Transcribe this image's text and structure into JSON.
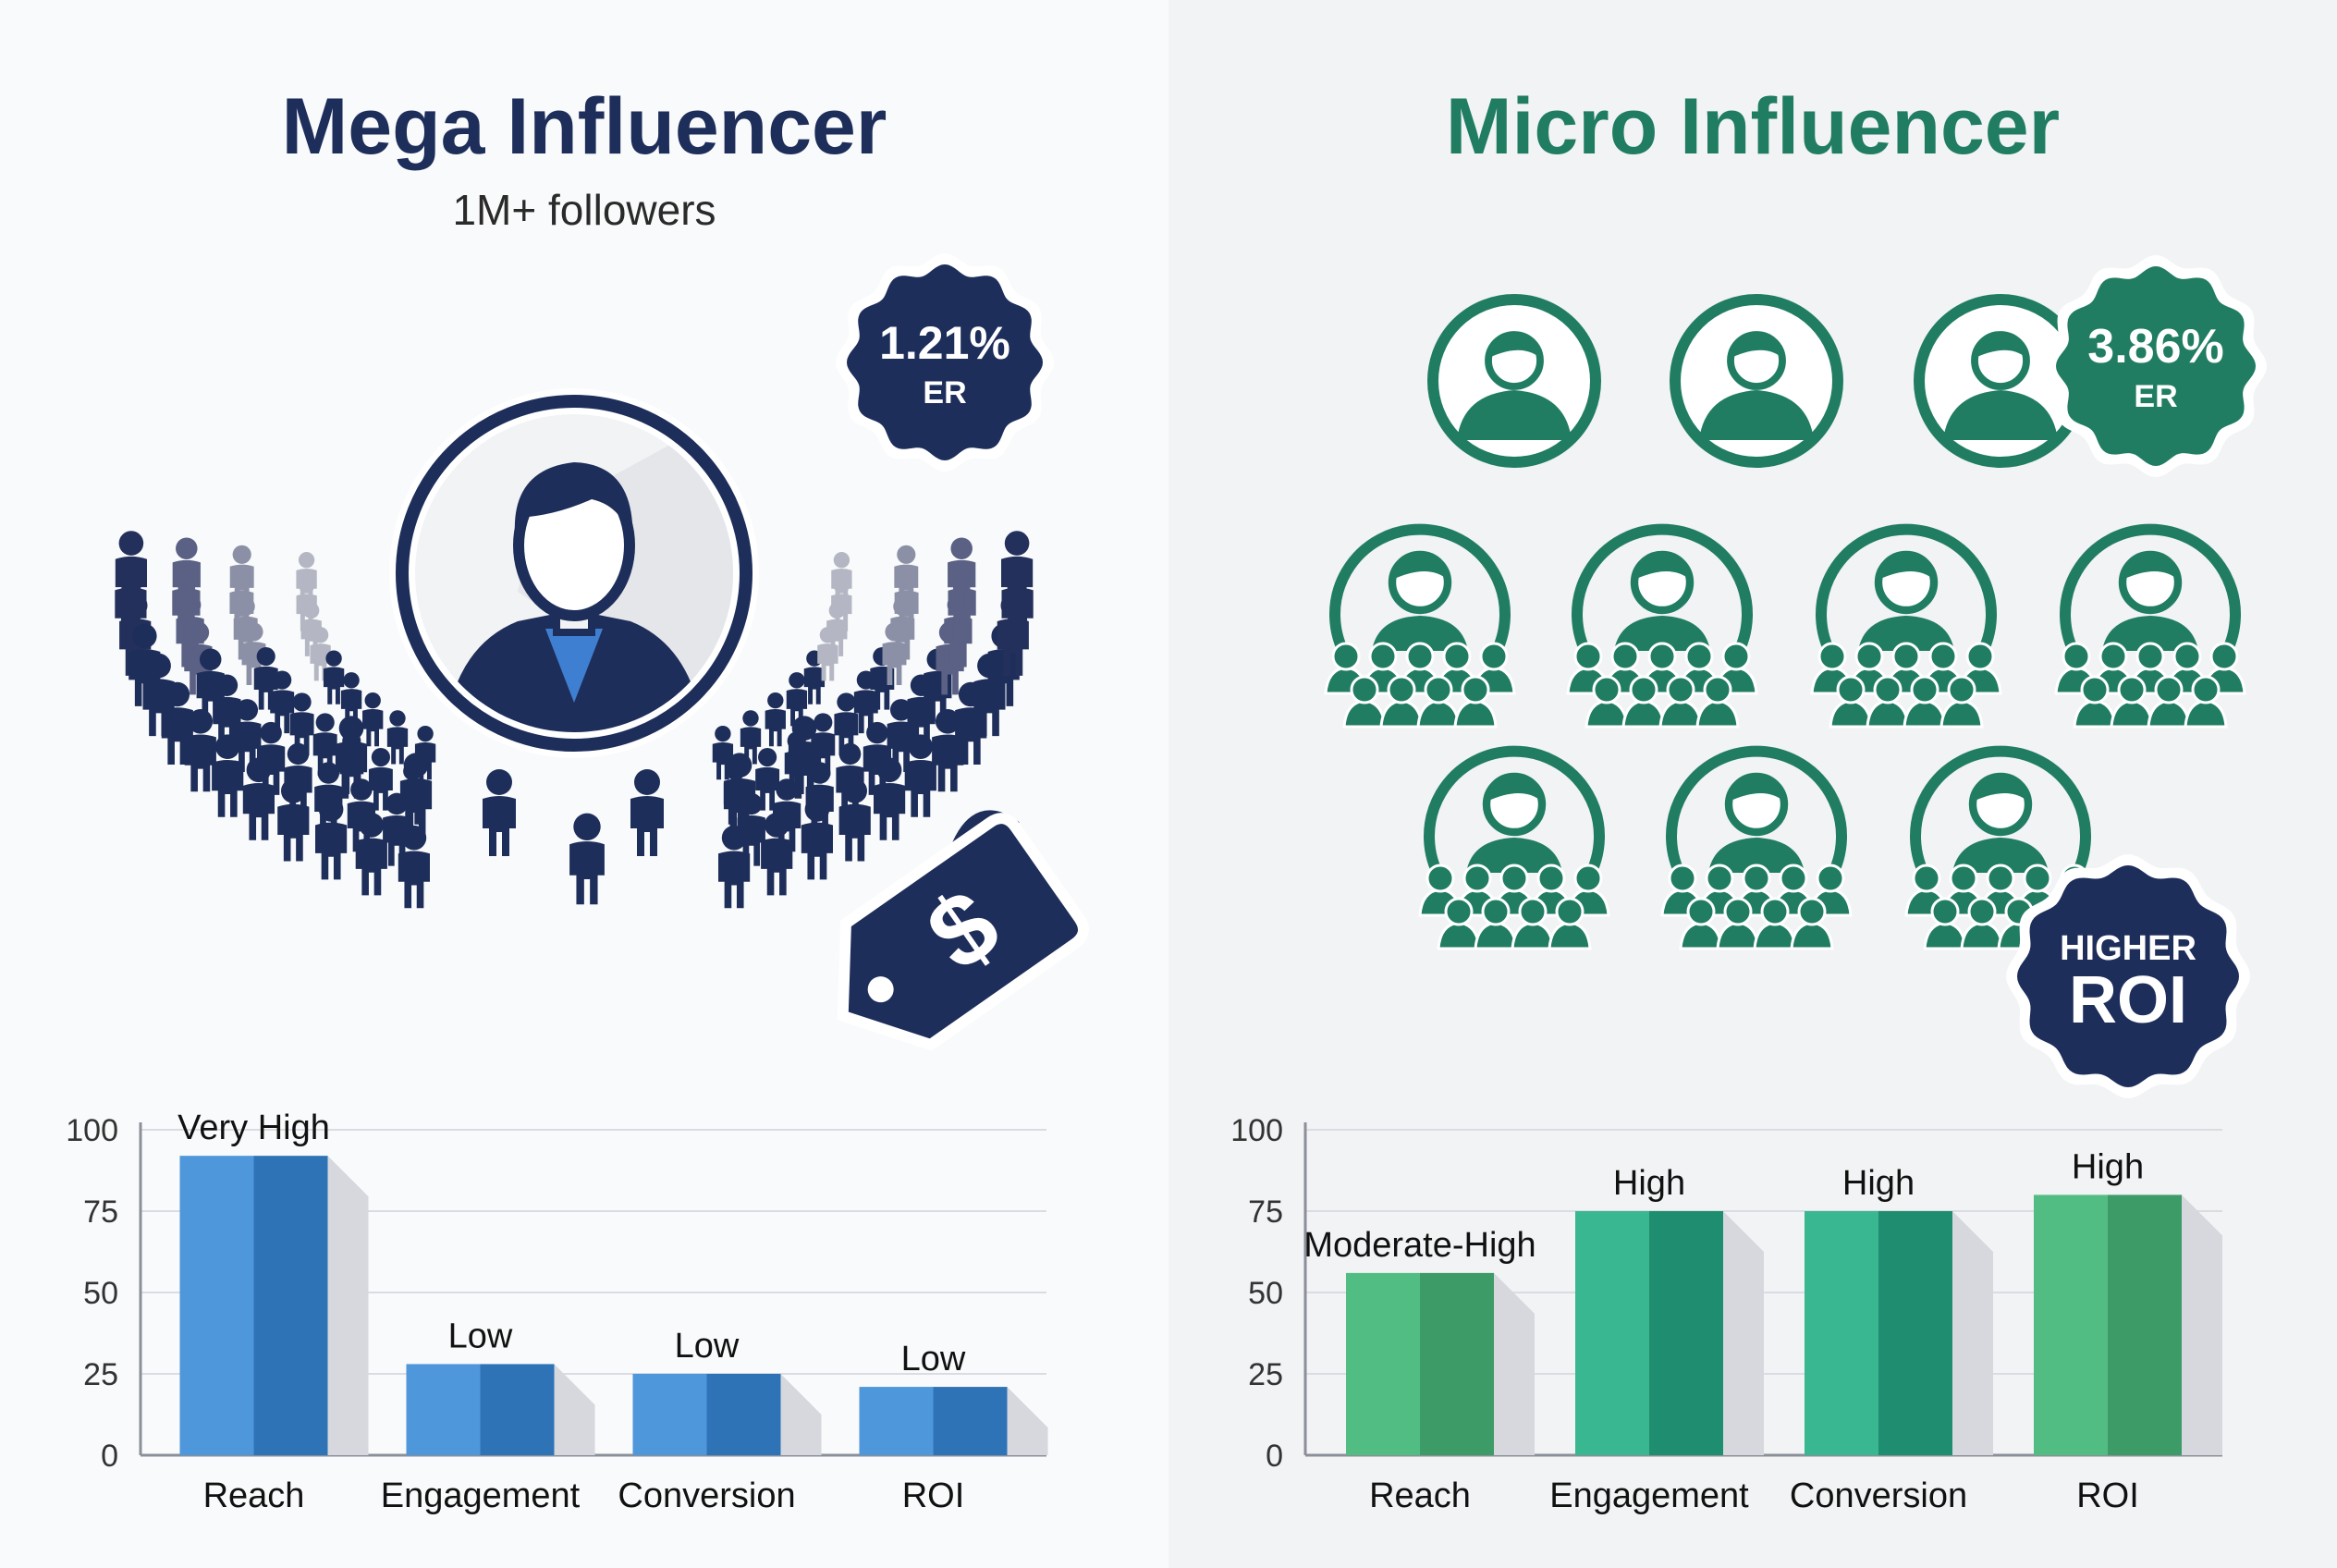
{
  "colors": {
    "navy": "#1e2e5a",
    "green": "#217d62",
    "blue_bar": "#3d88cc",
    "green_bar_reach": "#4cae78",
    "green_bar_teal": "#2aa487"
  },
  "mega": {
    "title": "Mega Influencer",
    "subtitle": "1M+ followers",
    "er_value": "1.21%",
    "er_label": "ER",
    "icons": [
      "person-avatar-icon",
      "crowd-icon",
      "price-tag-icon",
      "dollar-icon"
    ]
  },
  "micro": {
    "title": "Micro Influencer",
    "er_value": "3.86%",
    "er_label": "ER",
    "roi_line1": "HIGHER",
    "roi_line2": "ROI",
    "icons": [
      "person-circle-icon",
      "community-icon"
    ]
  },
  "chart_data": [
    {
      "type": "bar",
      "categories": [
        "Reach",
        "Engagement",
        "Conversion",
        "ROI"
      ],
      "values": [
        92,
        28,
        25,
        21
      ],
      "data_labels": [
        "Very High",
        "Low",
        "Low",
        "Low"
      ],
      "ylim": [
        0,
        100
      ],
      "yticks": [
        0,
        25,
        50,
        75,
        100
      ],
      "grid": true
    },
    {
      "type": "bar",
      "categories": [
        "Reach",
        "Engagement",
        "Conversion",
        "ROI"
      ],
      "values": [
        56,
        75,
        75,
        80
      ],
      "data_labels": [
        "Moderate-High",
        "High",
        "High",
        "High"
      ],
      "ylim": [
        0,
        100
      ],
      "yticks": [
        0,
        25,
        50,
        75,
        100
      ],
      "grid": true
    }
  ]
}
